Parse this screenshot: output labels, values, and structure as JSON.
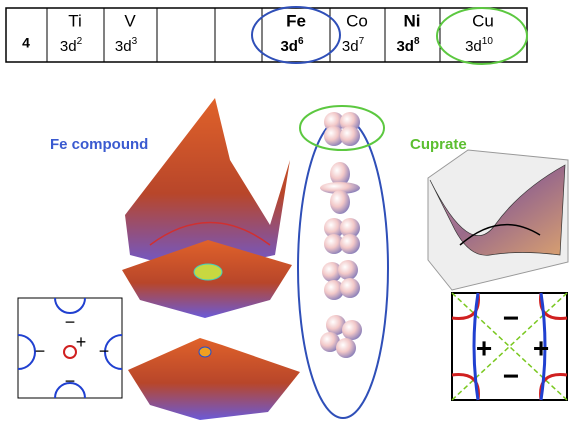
{
  "table": {
    "row_label": "4",
    "cells": [
      {
        "symbol": "Ti",
        "config": "3d",
        "sup": "2",
        "bold": false
      },
      {
        "symbol": "V",
        "config": "3d",
        "sup": "3",
        "bold": false
      },
      {
        "symbol": "Fe",
        "config": "3d",
        "sup": "6",
        "bold": true
      },
      {
        "symbol": "Co",
        "config": "3d",
        "sup": "7",
        "bold": false
      },
      {
        "symbol": "Ni",
        "config": "3d",
        "sup": "8",
        "bold": true
      },
      {
        "symbol": "Cu",
        "config": "3d",
        "sup": "10",
        "bold": false
      }
    ]
  },
  "labels": {
    "fe": "Fe compound",
    "cu": "Cuprate"
  },
  "fe_inset": {
    "signs": [
      "−",
      "+",
      "−",
      "−",
      "−"
    ]
  },
  "cu_inset": {
    "signs": [
      "−",
      "+",
      "+",
      "−"
    ]
  }
}
